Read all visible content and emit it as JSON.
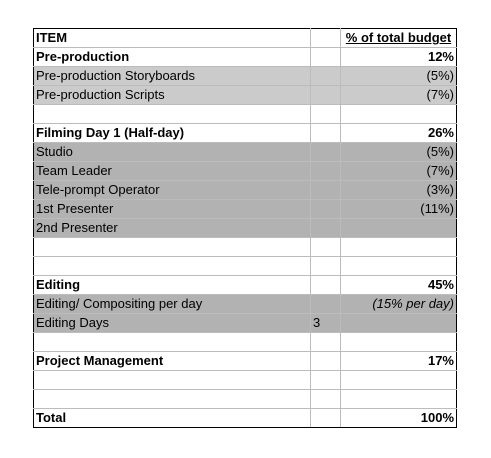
{
  "table": {
    "header": {
      "item": "ITEM",
      "budget": "% of total budget"
    },
    "rows": [
      {
        "type": "bold",
        "item": "Pre-production",
        "days": "",
        "pct": "12%"
      },
      {
        "type": "g1",
        "item": "Pre-production Storyboards",
        "days": "",
        "pct": "(5%)"
      },
      {
        "type": "g1",
        "item": "Pre-production Scripts",
        "days": "",
        "pct": "(7%)"
      },
      {
        "type": "blank",
        "item": "",
        "days": "",
        "pct": ""
      },
      {
        "type": "bold",
        "item": "Filming Day 1 (Half-day)",
        "days": "",
        "pct": "26%"
      },
      {
        "type": "g2",
        "item": "Studio",
        "days": "",
        "pct": "(5%)"
      },
      {
        "type": "g2",
        "item": "Team Leader",
        "days": "",
        "pct": "(7%)"
      },
      {
        "type": "g2",
        "item": "Tele-prompt Operator",
        "days": "",
        "pct": "(3%)"
      },
      {
        "type": "g2",
        "item": "1st Presenter",
        "days": "",
        "pct": "(11%)"
      },
      {
        "type": "g2",
        "item": "2nd Presenter",
        "days": "",
        "pct": ""
      },
      {
        "type": "blank",
        "item": "",
        "days": "",
        "pct": ""
      },
      {
        "type": "blank",
        "item": "",
        "days": "",
        "pct": ""
      },
      {
        "type": "bold",
        "item": "Editing",
        "days": "",
        "pct": "45%"
      },
      {
        "type": "g2 italic",
        "item": "Editing/ Compositing per day",
        "days": "",
        "pct": "(15% per day)"
      },
      {
        "type": "g2",
        "item": "Editing Days",
        "days": "3",
        "pct": ""
      },
      {
        "type": "blank",
        "item": "",
        "days": "",
        "pct": ""
      },
      {
        "type": "bold",
        "item": "Project Management",
        "days": "",
        "pct": "17%"
      },
      {
        "type": "blank",
        "item": "",
        "days": "",
        "pct": ""
      },
      {
        "type": "blank",
        "item": "",
        "days": "",
        "pct": ""
      },
      {
        "type": "total",
        "item": "Total",
        "days": "",
        "pct": "100%"
      }
    ]
  }
}
